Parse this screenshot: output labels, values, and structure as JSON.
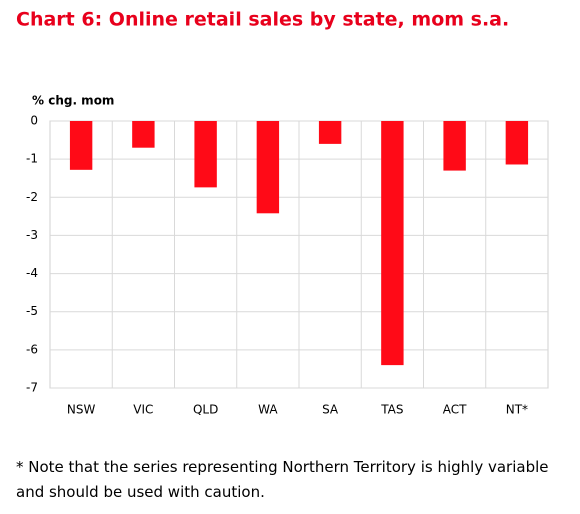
{
  "chart_data": {
    "type": "bar",
    "title": "Chart 6: Online retail sales by state, mom s.a.",
    "y_label": "% chg. mom",
    "categories": [
      "NSW",
      "VIC",
      "QLD",
      "WA",
      "SA",
      "TAS",
      "ACT",
      "NT*"
    ],
    "values": [
      -1.28,
      -0.7,
      -1.74,
      -2.42,
      -0.6,
      -6.4,
      -1.3,
      -1.14
    ],
    "color": "#ff0a17",
    "ylim": [
      -7,
      0
    ],
    "yticks": [
      0,
      -1,
      -2,
      -3,
      -4,
      -5,
      -6,
      -7
    ],
    "grid": true,
    "footnote": "* Note that the series representing Northern Territory is highly variable and should be used with caution."
  }
}
